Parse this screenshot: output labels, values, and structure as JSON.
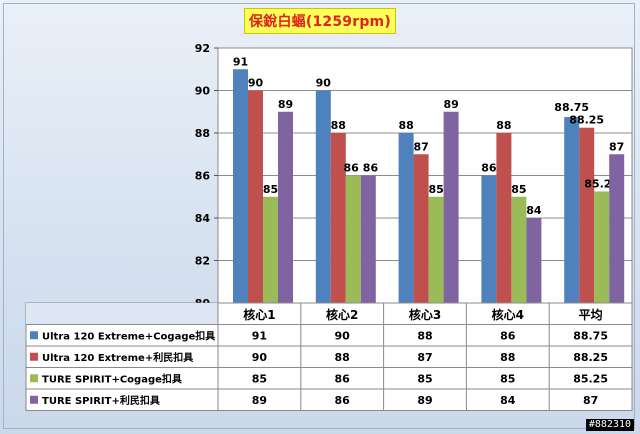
{
  "chart_data": {
    "type": "bar",
    "title": "保銳白蝠(1259rpm)",
    "categories": [
      "核心1",
      "核心2",
      "核心3",
      "核心4",
      "平均"
    ],
    "ylim": [
      80,
      92
    ],
    "yticks": [
      80,
      82,
      84,
      86,
      88,
      90,
      92
    ],
    "grid": true,
    "legend": "data-table-below",
    "series": [
      {
        "name": "Ultra 120 Extreme+Cogage扣具",
        "color": "#4f81bd",
        "values": [
          91,
          90,
          88,
          86,
          88.75
        ]
      },
      {
        "name": "Ultra 120 Extreme+利民扣具",
        "color": "#c0504d",
        "values": [
          90,
          88,
          87,
          88,
          88.25
        ]
      },
      {
        "name": "TURE SPIRIT+Cogage扣具",
        "color": "#9bbb59",
        "values": [
          85,
          86,
          85,
          85,
          85.25
        ]
      },
      {
        "name": "TURE SPIRIT+利民扣具",
        "color": "#8064a2",
        "values": [
          89,
          86,
          89,
          84,
          87
        ]
      }
    ]
  },
  "watermark": "#882310"
}
